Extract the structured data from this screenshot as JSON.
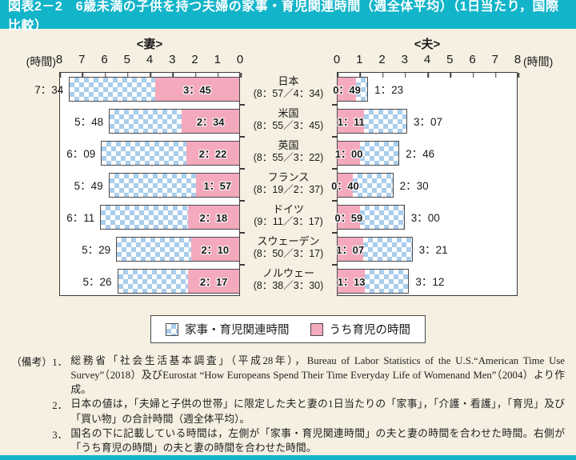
{
  "header": {
    "title": "図表2－2　6歳未満の子供を持つ夫婦の家事・育児関連時間（週全体平均）（1日当たり，国際比較）"
  },
  "chart_data": {
    "type": "bar",
    "orientation": "horizontal-paired",
    "left_panel_title": "<妻>",
    "right_panel_title": "<夫>",
    "axis_unit_label": "(時間)",
    "axis_ticks": [
      0,
      1,
      2,
      3,
      4,
      5,
      6,
      7,
      8
    ],
    "xlim": [
      0,
      8
    ],
    "legend": [
      {
        "label": "家事・育児関連時間",
        "style": "blue-check"
      },
      {
        "label": "うち育児の時間",
        "style": "pink"
      }
    ],
    "countries": [
      {
        "name": "日本",
        "combined_label": "(8：57／4：34)",
        "wife": {
          "total": "7：34",
          "total_min": 454,
          "child": "3：45",
          "child_min": 225
        },
        "husband": {
          "total": "1：23",
          "total_min": 83,
          "child": "0：49",
          "child_min": 49
        }
      },
      {
        "name": "米国",
        "combined_label": "(8：55／3：45)",
        "wife": {
          "total": "5：48",
          "total_min": 348,
          "child": "2：34",
          "child_min": 154
        },
        "husband": {
          "total": "3：07",
          "total_min": 187,
          "child": "1：11",
          "child_min": 71
        }
      },
      {
        "name": "英国",
        "combined_label": "(8：55／3：22)",
        "wife": {
          "total": "6：09",
          "total_min": 369,
          "child": "2：22",
          "child_min": 142
        },
        "husband": {
          "total": "2：46",
          "total_min": 166,
          "child": "1：00",
          "child_min": 60
        }
      },
      {
        "name": "フランス",
        "combined_label": "(8：19／2：37)",
        "wife": {
          "total": "5：49",
          "total_min": 349,
          "child": "1：57",
          "child_min": 117
        },
        "husband": {
          "total": "2：30",
          "total_min": 150,
          "child": "0：40",
          "child_min": 40
        }
      },
      {
        "name": "ドイツ",
        "combined_label": "(9：11／3：17)",
        "wife": {
          "total": "6：11",
          "total_min": 371,
          "child": "2：18",
          "child_min": 138
        },
        "husband": {
          "total": "3：00",
          "total_min": 180,
          "child": "0：59",
          "child_min": 59
        }
      },
      {
        "name": "スウェーデン",
        "combined_label": "(8：50／3：17)",
        "wife": {
          "total": "5：29",
          "total_min": 329,
          "child": "2：10",
          "child_min": 130
        },
        "husband": {
          "total": "3：21",
          "total_min": 201,
          "child": "1：07",
          "child_min": 67
        }
      },
      {
        "name": "ノルウェー",
        "combined_label": "(8：38／3：30)",
        "wife": {
          "total": "5：26",
          "total_min": 326,
          "child": "2：17",
          "child_min": 137
        },
        "husband": {
          "total": "3：12",
          "total_min": 192,
          "child": "1：13",
          "child_min": 73
        }
      }
    ]
  },
  "colors": {
    "accent_teal": "#12b4c9",
    "background_cream": "#f5f0e1",
    "bar_pink": "#f4a9bc",
    "bar_blue_check": "#a9cdec"
  },
  "notes": {
    "label": "（備考）",
    "items": [
      {
        "num": "1．",
        "text": "総務省「社会生活基本調査」（平成28年），Bureau of Labor Statistics of the U.S.“American Time Use Survey”（2018）及びEurostat “How Europeans Spend Their Time Everyday Life of Womenand Men”（2004）より作成。"
      },
      {
        "num": "2．",
        "text": "日本の値は，「夫婦と子供の世帯」に限定した夫と妻の1日当たりの「家事」，「介護・看護」，「育児」及び「買い物」の合計時間（週全体平均）。"
      },
      {
        "num": "3．",
        "text": "国名の下に記載している時間は，左側が「家事・育児関連時間」の夫と妻の時間を合わせた時間。右側が「うち育児の時間」の夫と妻の時間を合わせた時間。"
      }
    ]
  }
}
